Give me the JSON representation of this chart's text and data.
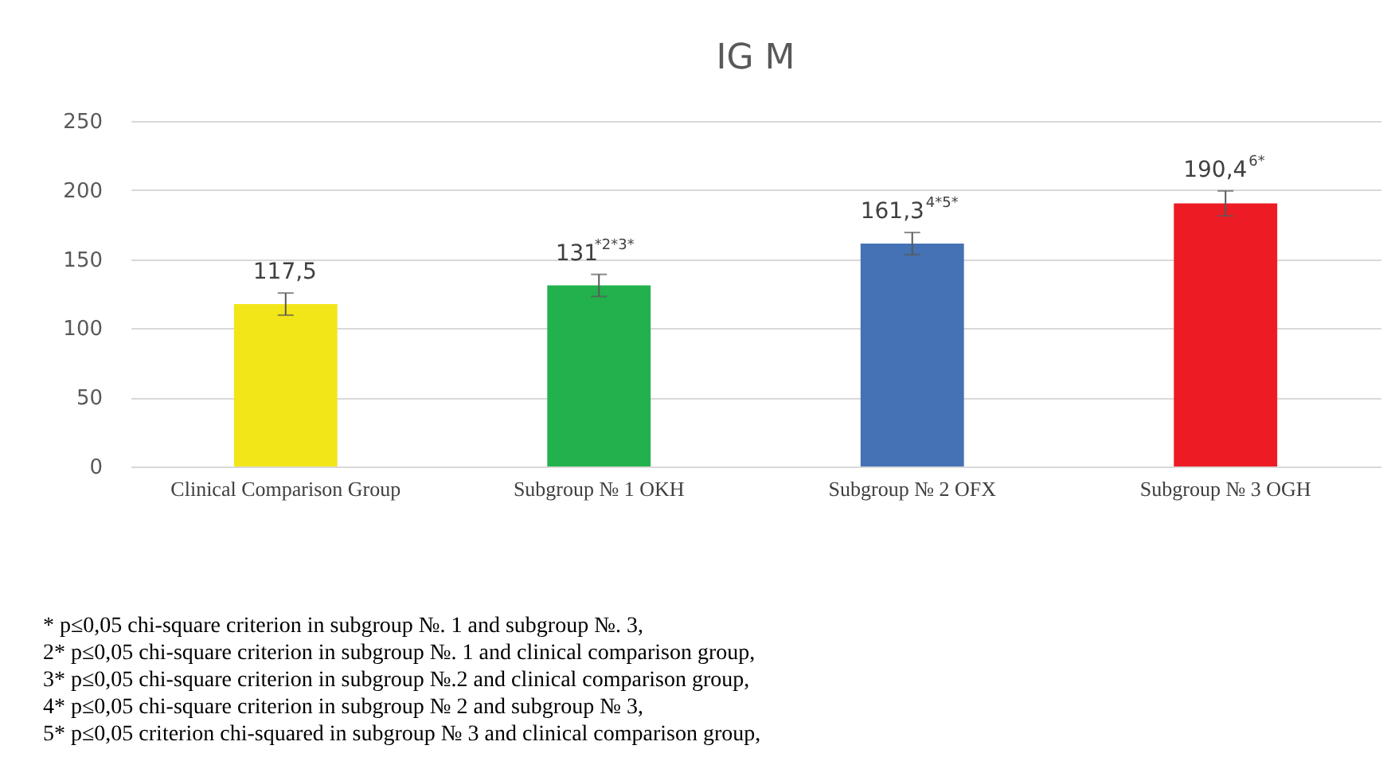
{
  "chart_data": {
    "type": "bar",
    "title": "IG M",
    "categories": [
      "Clinical Comparison Group",
      "Subgroup № 1 OKH",
      "Subgroup № 2 OFX",
      "Subgroup № 3 OGH"
    ],
    "values": [
      117.5,
      131,
      161.3,
      190.4
    ],
    "colors": [
      "#f2e619",
      "#22b14c",
      "#4472b4",
      "#ed1c24"
    ],
    "errors": [
      8,
      8,
      8,
      9
    ],
    "value_labels": [
      "117,5",
      "131$^{*2*3*}$",
      "161,3$^{4*5*}$",
      "190,4$^{6*}$"
    ],
    "ylim": [
      0,
      250
    ],
    "yticks": [
      0,
      50,
      100,
      150,
      200,
      250
    ],
    "grid": "y",
    "annotations": [
      "*   p≤0,05 chi-square criterion in subgroup №. 1 and subgroup №. 3,",
      "2* p≤0,05 chi-square criterion in subgroup №. 1 and clinical comparison group,",
      "3* p≤0,05 chi-square criterion in subgroup №.2 and clinical comparison group,",
      "4* p≤0,05 chi-square criterion in subgroup № 2 and subgroup № 3,",
      "5* p≤0,05 criterion chi-squared in subgroup № 3 and clinical comparison group,"
    ]
  }
}
